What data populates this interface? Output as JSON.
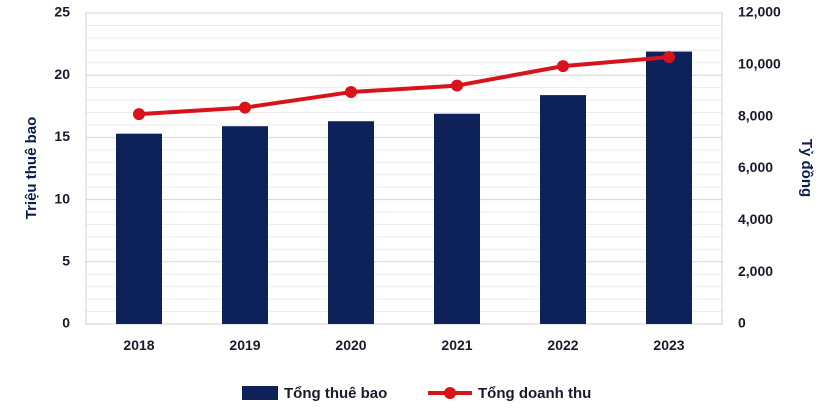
{
  "chart_data": {
    "type": "bar+line",
    "categories": [
      "2018",
      "2019",
      "2020",
      "2021",
      "2022",
      "2023"
    ],
    "series": [
      {
        "name": "Tổng thuê bao",
        "type": "bar",
        "axis": "left",
        "color": "#0d2259",
        "values": [
          15.3,
          15.9,
          16.3,
          16.9,
          18.4,
          21.9
        ]
      },
      {
        "name": "Tổng doanh thu",
        "type": "line",
        "axis": "right",
        "color": "#d9131b",
        "values": [
          8100,
          8350,
          8950,
          9200,
          9950,
          10300
        ]
      }
    ],
    "y_left": {
      "label": "Triệu thuê bao",
      "ylim": [
        0,
        25
      ],
      "ticks": [
        "0",
        "5",
        "10",
        "15",
        "20",
        "25"
      ]
    },
    "y_right": {
      "label": "Tỷ đồng",
      "ylim": [
        0,
        12000
      ],
      "ticks": [
        "0",
        "2,000",
        "4,000",
        "6,000",
        "8,000",
        "10,000",
        "12,000"
      ]
    },
    "grid": true,
    "legend_position": "bottom"
  }
}
